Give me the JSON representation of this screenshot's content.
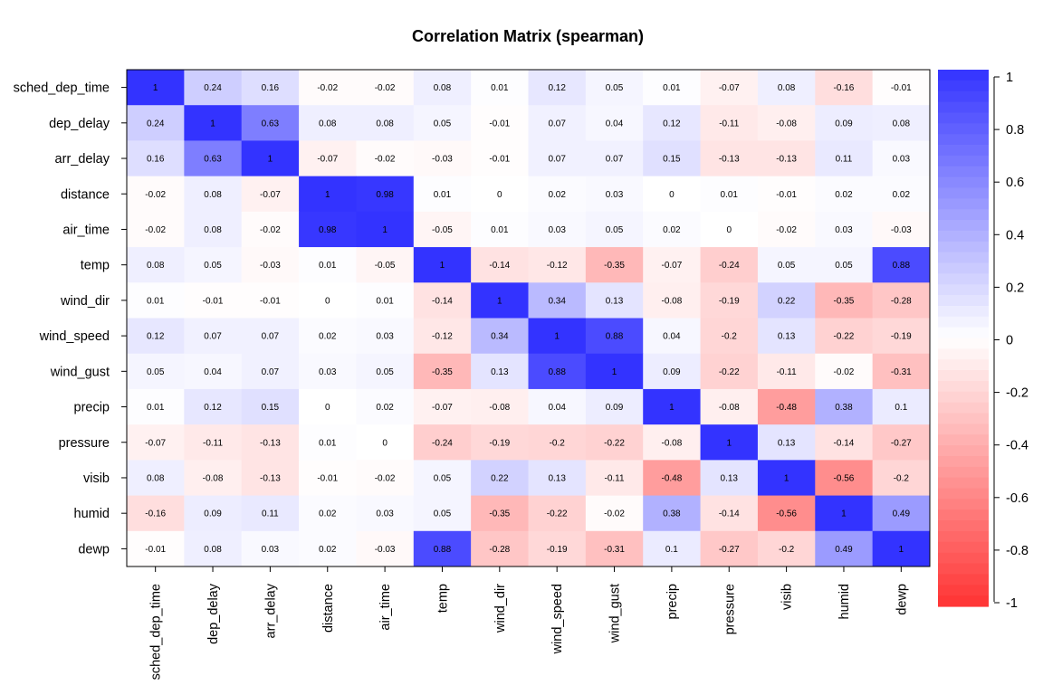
{
  "chart_data": {
    "type": "heatmap",
    "title": "Correlation Matrix (spearman)",
    "variables": [
      "sched_dep_time",
      "dep_delay",
      "arr_delay",
      "distance",
      "air_time",
      "temp",
      "wind_dir",
      "wind_speed",
      "wind_gust",
      "precip",
      "pressure",
      "visib",
      "humid",
      "dewp"
    ],
    "matrix": [
      [
        1,
        0.24,
        0.16,
        -0.02,
        -0.02,
        0.08,
        0.01,
        0.12,
        0.05,
        0.01,
        -0.07,
        0.08,
        -0.16,
        -0.01
      ],
      [
        0.24,
        1,
        0.63,
        0.08,
        0.08,
        0.05,
        -0.01,
        0.07,
        0.04,
        0.12,
        -0.11,
        -0.08,
        0.09,
        0.08
      ],
      [
        0.16,
        0.63,
        1,
        -0.07,
        -0.02,
        -0.03,
        -0.01,
        0.07,
        0.07,
        0.15,
        -0.13,
        -0.13,
        0.11,
        0.03
      ],
      [
        -0.02,
        0.08,
        -0.07,
        1,
        0.98,
        0.01,
        0,
        0.02,
        0.03,
        0,
        0.01,
        -0.01,
        0.02,
        0.02
      ],
      [
        -0.02,
        0.08,
        -0.02,
        0.98,
        1,
        -0.05,
        0.01,
        0.03,
        0.05,
        0.02,
        0,
        -0.02,
        0.03,
        -0.03
      ],
      [
        0.08,
        0.05,
        -0.03,
        0.01,
        -0.05,
        1,
        -0.14,
        -0.12,
        -0.35,
        -0.07,
        -0.24,
        0.05,
        0.05,
        0.88
      ],
      [
        0.01,
        -0.01,
        -0.01,
        0,
        0.01,
        -0.14,
        1,
        0.34,
        0.13,
        -0.08,
        -0.19,
        0.22,
        -0.35,
        -0.28
      ],
      [
        0.12,
        0.07,
        0.07,
        0.02,
        0.03,
        -0.12,
        0.34,
        1,
        0.88,
        0.04,
        -0.2,
        0.13,
        -0.22,
        -0.19
      ],
      [
        0.05,
        0.04,
        0.07,
        0.03,
        0.05,
        -0.35,
        0.13,
        0.88,
        1,
        0.09,
        -0.22,
        -0.11,
        -0.02,
        -0.31
      ],
      [
        0.01,
        0.12,
        0.15,
        0,
        0.02,
        -0.07,
        -0.08,
        0.04,
        0.09,
        1,
        -0.08,
        -0.48,
        0.38,
        0.1
      ],
      [
        -0.07,
        -0.11,
        -0.13,
        0.01,
        0,
        -0.24,
        -0.19,
        -0.2,
        -0.22,
        -0.08,
        1,
        0.13,
        -0.14,
        -0.27
      ],
      [
        0.08,
        -0.08,
        -0.13,
        -0.01,
        -0.02,
        0.05,
        0.22,
        0.13,
        -0.11,
        -0.48,
        0.13,
        1,
        -0.56,
        -0.2
      ],
      [
        -0.16,
        0.09,
        0.11,
        0.02,
        0.03,
        0.05,
        -0.35,
        -0.22,
        -0.02,
        0.38,
        -0.14,
        -0.56,
        1,
        0.49
      ],
      [
        -0.01,
        0.08,
        0.03,
        0.02,
        -0.03,
        0.88,
        -0.28,
        -0.19,
        -0.31,
        0.1,
        -0.27,
        -0.2,
        0.49,
        1
      ]
    ],
    "color_scale": {
      "min": -1,
      "max": 1,
      "ticks": [
        1,
        0.8,
        0.6,
        0.4,
        0.2,
        0,
        -0.2,
        -0.4,
        -0.6,
        -0.8,
        -1
      ],
      "tick_labels": [
        "1",
        "0.8",
        "0.6",
        "0.4",
        "0.2",
        "0",
        "-0.2",
        "-0.4",
        "-0.6",
        "-0.8",
        "-1"
      ],
      "negative_color": "#ff3333",
      "zero_color": "#ffffff",
      "positive_color": "#3333ff"
    },
    "legend_placement": "right",
    "grid": false
  }
}
